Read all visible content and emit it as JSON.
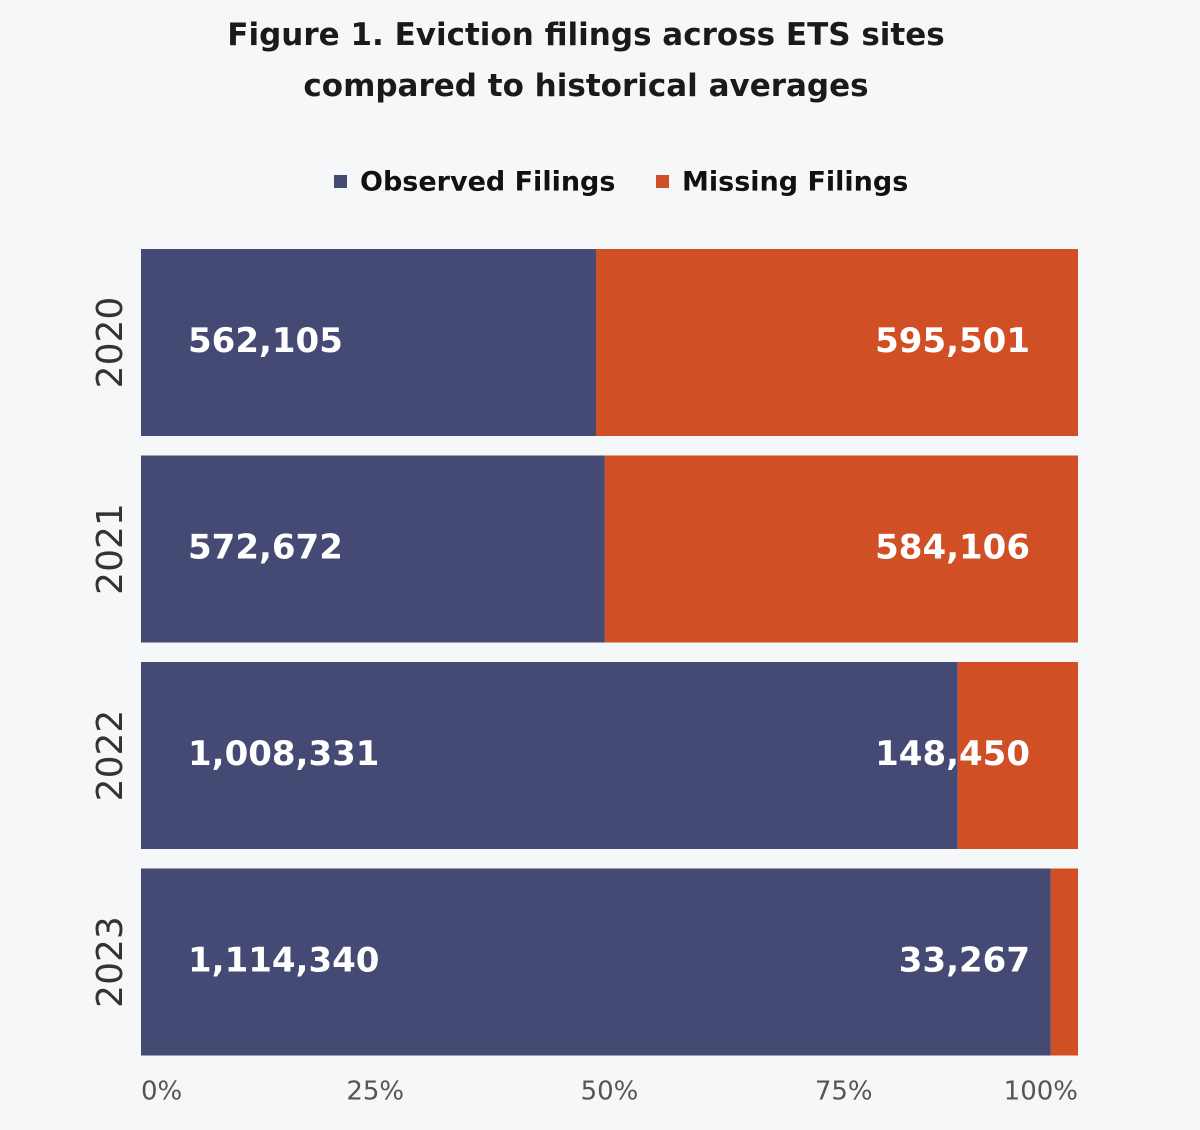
{
  "chart_data": {
    "type": "stacked-bar-100",
    "orientation": "horizontal",
    "title": "Figure 1. Eviction filings across ETS sites compared to historical averages",
    "categories": [
      "2020",
      "2021",
      "2022",
      "2023"
    ],
    "series": [
      {
        "name": "Observed Filings",
        "color": "#454a74",
        "values": [
          562105,
          572672,
          1008331,
          1114340
        ],
        "value_labels": [
          "562,105",
          "572,672",
          "1,008,331",
          "1,114,340"
        ]
      },
      {
        "name": "Missing Filings",
        "color": "#d04f24",
        "values": [
          595501,
          584106,
          148450,
          33267
        ],
        "value_labels": [
          "595,501",
          "584,106",
          "148,450",
          "33,267"
        ]
      }
    ],
    "xlim": [
      0,
      100
    ],
    "xticks": [
      {
        "value": 0,
        "label": "0%"
      },
      {
        "value": 25,
        "label": "25%"
      },
      {
        "value": 50,
        "label": "50%"
      },
      {
        "value": 75,
        "label": "75%"
      },
      {
        "value": 100,
        "label": "100%"
      }
    ],
    "legend": "top",
    "grid": false
  }
}
